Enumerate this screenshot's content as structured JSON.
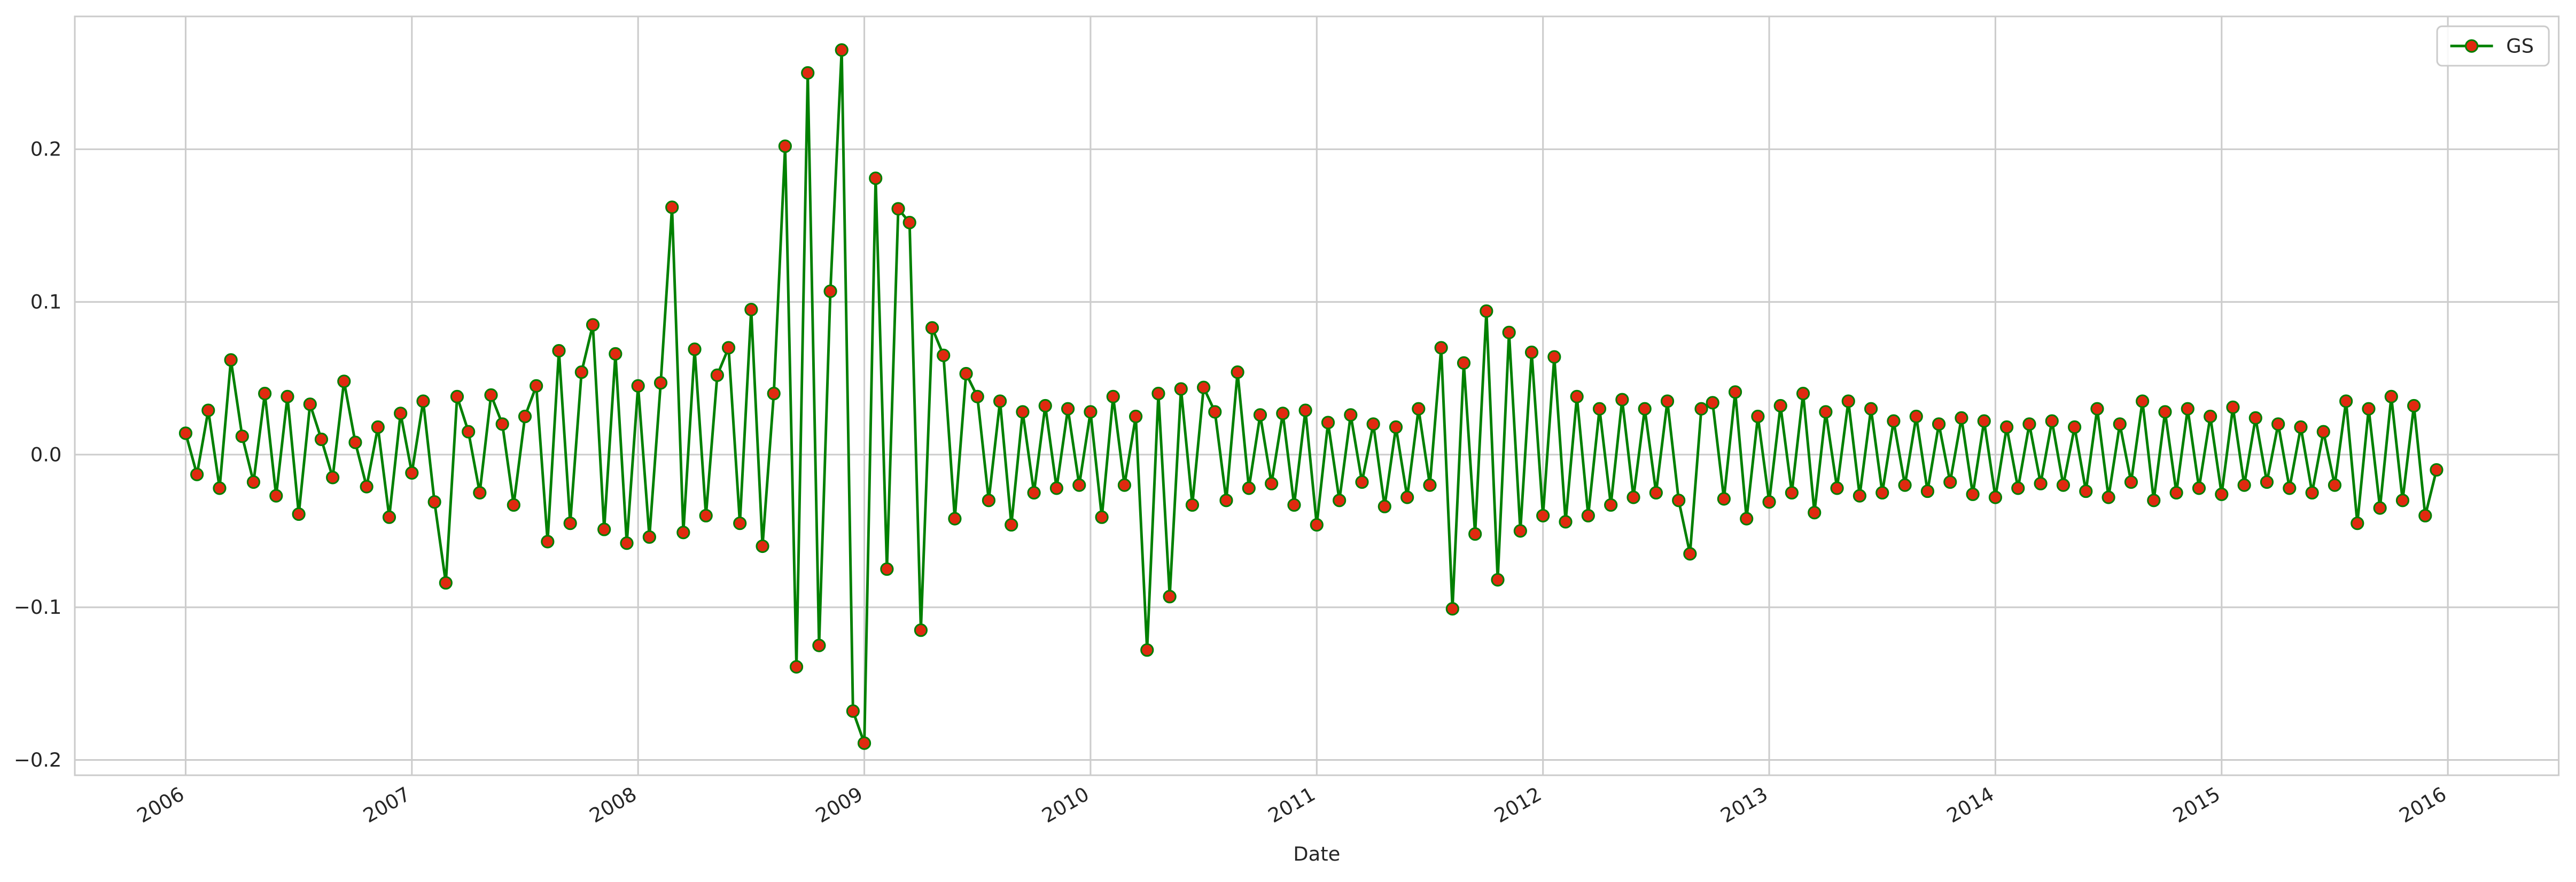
{
  "chart_data": {
    "type": "line",
    "xlabel": "Date",
    "x": [
      2006,
      2006.05,
      2006.1,
      2006.15,
      2006.2,
      2006.25,
      2006.3,
      2006.35,
      2006.4,
      2006.45,
      2006.5,
      2006.55,
      2006.6,
      2006.65,
      2006.7,
      2006.75,
      2006.8,
      2006.85,
      2006.9,
      2006.95,
      2007,
      2007.05,
      2007.1,
      2007.15,
      2007.2,
      2007.25,
      2007.3,
      2007.35,
      2007.4,
      2007.45,
      2007.5,
      2007.55,
      2007.6,
      2007.65,
      2007.7,
      2007.75,
      2007.8,
      2007.85,
      2007.9,
      2007.95,
      2008,
      2008.05,
      2008.1,
      2008.15,
      2008.2,
      2008.25,
      2008.3,
      2008.35,
      2008.4,
      2008.45,
      2008.5,
      2008.55,
      2008.6,
      2008.65,
      2008.7,
      2008.75,
      2008.8,
      2008.85,
      2008.9,
      2008.95,
      2009,
      2009.05,
      2009.1,
      2009.15,
      2009.2,
      2009.25,
      2009.3,
      2009.35,
      2009.4,
      2009.45,
      2009.5,
      2009.55,
      2009.6,
      2009.65,
      2009.7,
      2009.75,
      2009.8,
      2009.85,
      2009.9,
      2009.95,
      2010,
      2010.05,
      2010.1,
      2010.15,
      2010.2,
      2010.25,
      2010.3,
      2010.35,
      2010.4,
      2010.45,
      2010.5,
      2010.55,
      2010.6,
      2010.65,
      2010.7,
      2010.75,
      2010.8,
      2010.85,
      2010.9,
      2010.95,
      2011,
      2011.05,
      2011.1,
      2011.15,
      2011.2,
      2011.25,
      2011.3,
      2011.35,
      2011.4,
      2011.45,
      2011.5,
      2011.55,
      2011.6,
      2011.65,
      2011.7,
      2011.75,
      2011.8,
      2011.85,
      2011.9,
      2011.95,
      2012,
      2012.05,
      2012.1,
      2012.15,
      2012.2,
      2012.25,
      2012.3,
      2012.35,
      2012.4,
      2012.45,
      2012.5,
      2012.55,
      2012.6,
      2012.65,
      2012.7,
      2012.75,
      2012.8,
      2012.85,
      2012.9,
      2012.95,
      2013,
      2013.05,
      2013.1,
      2013.15,
      2013.2,
      2013.25,
      2013.3,
      2013.35,
      2013.4,
      2013.45,
      2013.5,
      2013.55,
      2013.6,
      2013.65,
      2013.7,
      2013.75,
      2013.8,
      2013.85,
      2013.9,
      2013.95,
      2014,
      2014.05,
      2014.1,
      2014.15,
      2014.2,
      2014.25,
      2014.3,
      2014.35,
      2014.4,
      2014.45,
      2014.5,
      2014.55,
      2014.6,
      2014.65,
      2014.7,
      2014.75,
      2014.8,
      2014.85,
      2014.9,
      2014.95,
      2015,
      2015.05,
      2015.1,
      2015.15,
      2015.2,
      2015.25,
      2015.3,
      2015.35,
      2015.4,
      2015.45,
      2015.5,
      2015.55,
      2015.6,
      2015.65,
      2015.7,
      2015.75,
      2015.8,
      2015.85,
      2015.9,
      2015.95
    ],
    "series": [
      {
        "name": "GS",
        "color": "#008000",
        "marker_color": "#e02a10",
        "values": [
          0.014,
          -0.013,
          0.029,
          -0.022,
          0.062,
          0.012,
          -0.018,
          0.04,
          -0.027,
          0.038,
          -0.039,
          0.033,
          0.01,
          -0.015,
          0.048,
          0.008,
          -0.021,
          0.018,
          -0.041,
          0.027,
          -0.012,
          0.035,
          -0.031,
          -0.084,
          0.038,
          0.015,
          -0.025,
          0.039,
          0.02,
          -0.033,
          0.025,
          0.045,
          -0.057,
          0.068,
          -0.045,
          0.054,
          0.085,
          -0.049,
          0.066,
          -0.058,
          0.045,
          -0.054,
          0.047,
          0.162,
          -0.051,
          0.069,
          -0.04,
          0.052,
          0.07,
          -0.045,
          0.095,
          -0.06,
          0.04,
          0.202,
          -0.139,
          0.25,
          -0.125,
          0.107,
          0.265,
          -0.168,
          -0.189,
          0.181,
          -0.075,
          0.161,
          0.152,
          -0.115,
          0.083,
          0.065,
          -0.042,
          0.053,
          0.038,
          -0.03,
          0.035,
          -0.046,
          0.028,
          -0.025,
          0.032,
          -0.022,
          0.03,
          -0.02,
          0.028,
          -0.041,
          0.038,
          -0.02,
          0.025,
          -0.128,
          0.04,
          -0.093,
          0.043,
          -0.033,
          0.044,
          0.028,
          -0.03,
          0.054,
          -0.022,
          0.026,
          -0.019,
          0.027,
          -0.033,
          0.029,
          -0.046,
          0.021,
          -0.03,
          0.026,
          -0.018,
          0.02,
          -0.034,
          0.018,
          -0.028,
          0.03,
          -0.02,
          0.07,
          -0.101,
          0.06,
          -0.052,
          0.094,
          -0.082,
          0.08,
          -0.05,
          0.067,
          -0.04,
          0.064,
          -0.044,
          0.038,
          -0.04,
          0.03,
          -0.033,
          0.036,
          -0.028,
          0.03,
          -0.025,
          0.035,
          -0.03,
          -0.065,
          0.03,
          0.034,
          -0.029,
          0.041,
          -0.042,
          0.025,
          -0.031,
          0.032,
          -0.025,
          0.04,
          -0.038,
          0.028,
          -0.022,
          0.035,
          -0.027,
          0.03,
          -0.025,
          0.022,
          -0.02,
          0.025,
          -0.024,
          0.02,
          -0.018,
          0.024,
          -0.026,
          0.022,
          -0.028,
          0.018,
          -0.022,
          0.02,
          -0.019,
          0.022,
          -0.02,
          0.018,
          -0.024,
          0.03,
          -0.028,
          0.02,
          -0.018,
          0.035,
          -0.03,
          0.028,
          -0.025,
          0.03,
          -0.022,
          0.025,
          -0.026,
          0.031,
          -0.02,
          0.024,
          -0.018,
          0.02,
          -0.022,
          0.018,
          -0.025,
          0.015,
          -0.02,
          0.035,
          -0.045,
          0.03,
          -0.035,
          0.038,
          -0.03,
          0.032,
          -0.04,
          -0.01
        ]
      }
    ],
    "xlim": [
      2005.51,
      2016.49
    ],
    "xticks": [
      2006,
      2007,
      2008,
      2009,
      2010,
      2011,
      2012,
      2013,
      2014,
      2015,
      2016
    ],
    "ylim": [
      -0.21,
      0.287
    ],
    "yticks": [
      {
        "value": -0.2,
        "label": "−0.2"
      },
      {
        "value": -0.1,
        "label": "−0.1"
      },
      {
        "value": 0,
        "label": "0.0"
      },
      0.1,
      0.2
    ],
    "grid": true,
    "legend": "upper right"
  }
}
